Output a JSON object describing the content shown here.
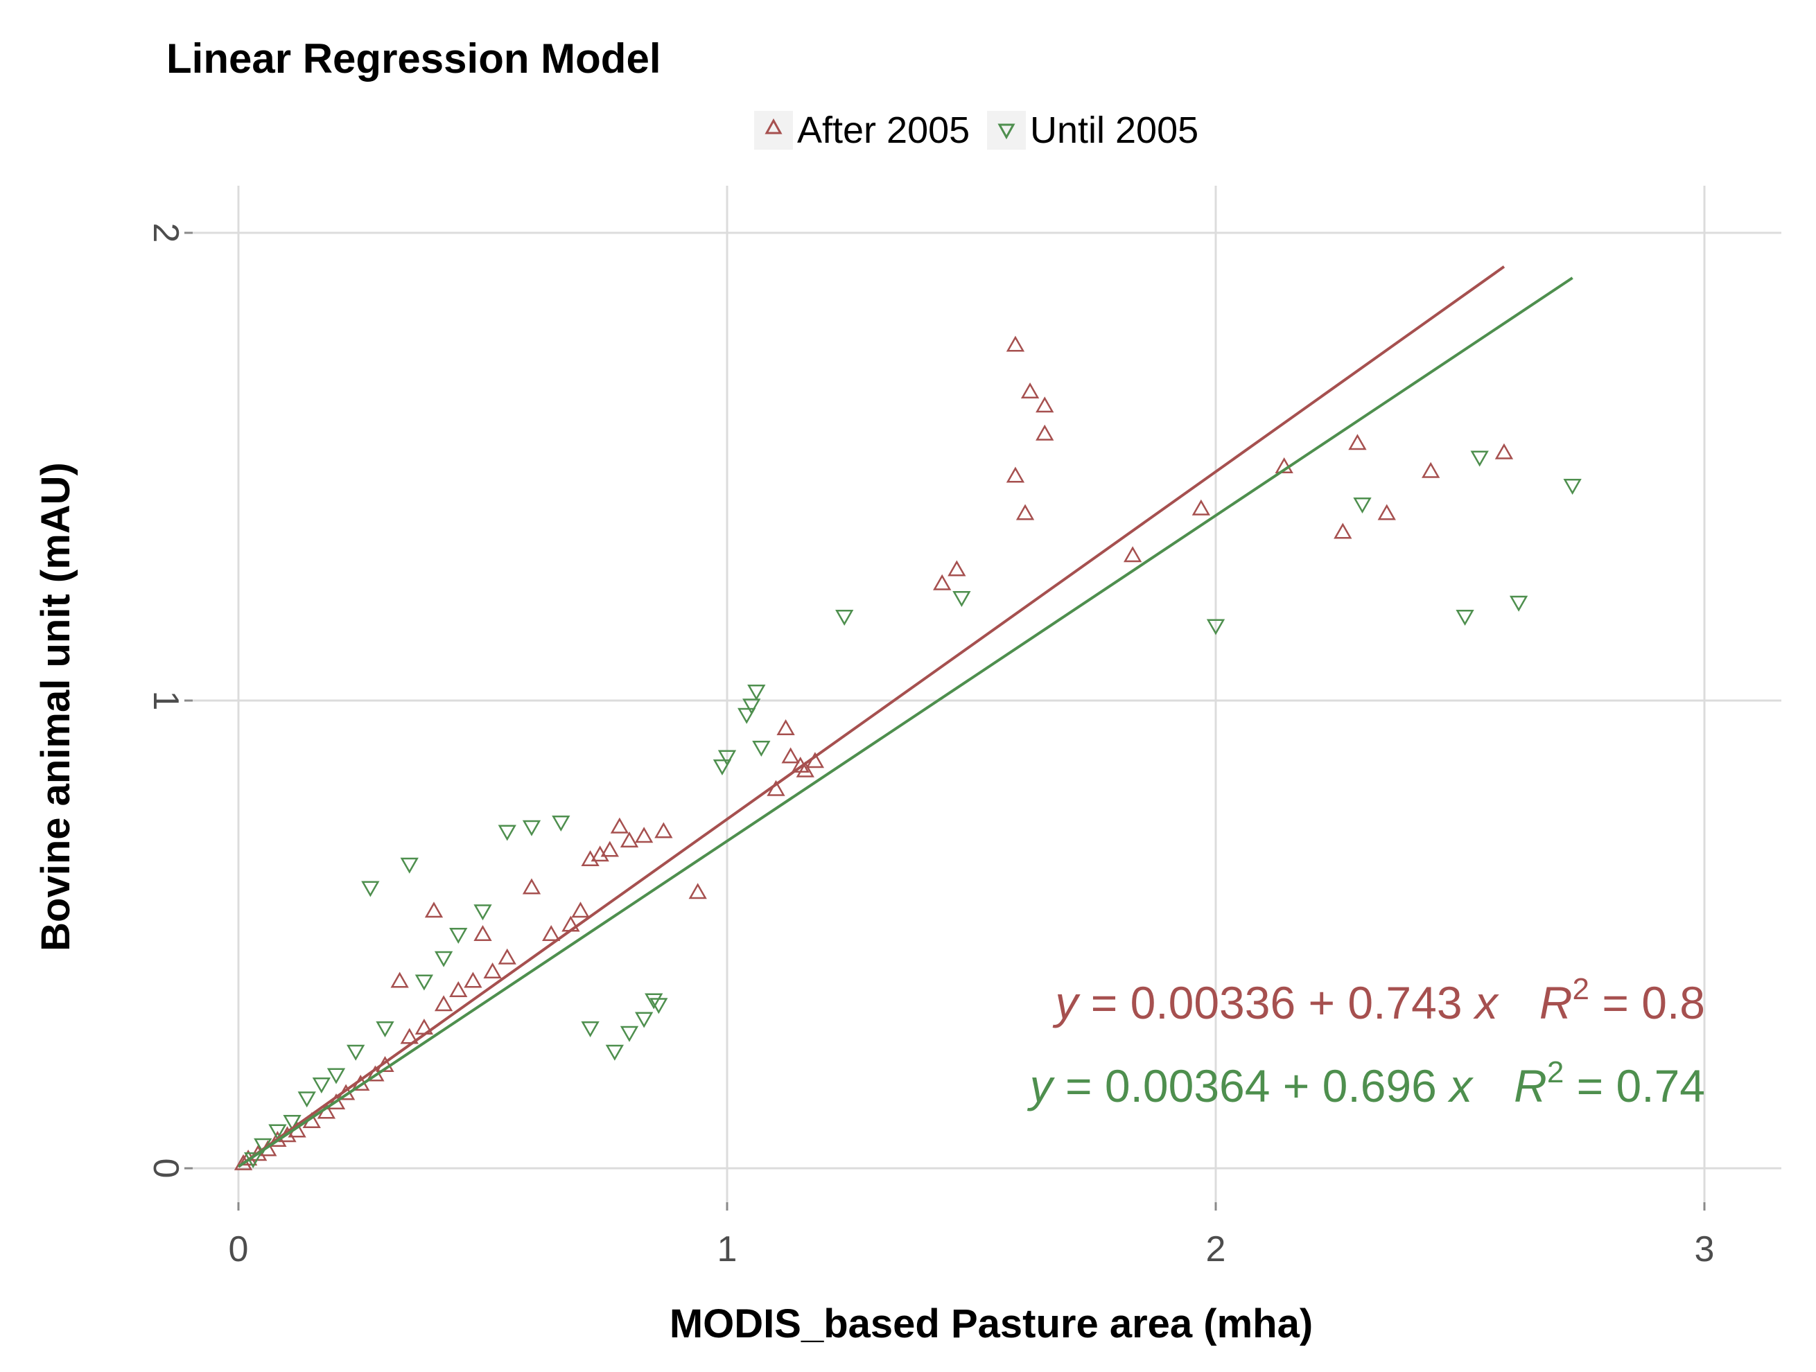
{
  "chart_data": {
    "type": "scatter",
    "title": "Linear Regression Model",
    "xlabel": "MODIS_based Pasture area (mha)",
    "ylabel": "Bovine animal unit (mAU)",
    "xlim": [
      -0.1,
      3.15
    ],
    "ylim": [
      -0.08,
      2.1
    ],
    "xticks": [
      0,
      1,
      2,
      3
    ],
    "yticks": [
      0,
      1,
      2
    ],
    "xtick_labels": [
      "0",
      "1",
      "2",
      "3"
    ],
    "ytick_labels": [
      "0",
      "1",
      "2"
    ],
    "grid": true,
    "legend_position": "top",
    "series": [
      {
        "name": "After 2005",
        "legend_label": "After 2005",
        "marker": "triangle-up",
        "color": "#a6504f",
        "x": [
          1.59,
          1.62,
          1.65,
          1.65,
          1.59,
          1.61,
          1.47,
          1.44,
          1.83,
          1.97,
          2.14,
          2.29,
          2.26,
          2.35,
          2.44,
          2.59,
          1.12,
          1.15,
          1.18,
          1.13,
          1.16,
          1.1,
          0.94,
          0.87,
          0.83,
          0.8,
          0.78,
          0.76,
          0.74,
          0.72,
          0.7,
          0.68,
          0.64,
          0.6,
          0.55,
          0.52,
          0.5,
          0.48,
          0.45,
          0.42,
          0.4,
          0.38,
          0.35,
          0.33,
          0.3,
          0.28,
          0.25,
          0.22,
          0.2,
          0.18,
          0.15,
          0.12,
          0.1,
          0.08,
          0.06,
          0.04,
          0.02,
          0.01
        ],
        "y": [
          1.76,
          1.66,
          1.63,
          1.57,
          1.48,
          1.4,
          1.28,
          1.25,
          1.31,
          1.41,
          1.5,
          1.55,
          1.36,
          1.4,
          1.49,
          1.53,
          0.94,
          0.86,
          0.87,
          0.88,
          0.85,
          0.81,
          0.59,
          0.72,
          0.71,
          0.7,
          0.73,
          0.68,
          0.67,
          0.66,
          0.55,
          0.52,
          0.5,
          0.6,
          0.45,
          0.42,
          0.5,
          0.4,
          0.38,
          0.35,
          0.55,
          0.3,
          0.28,
          0.4,
          0.22,
          0.2,
          0.18,
          0.16,
          0.14,
          0.12,
          0.1,
          0.08,
          0.07,
          0.06,
          0.04,
          0.03,
          0.02,
          0.01
        ]
      },
      {
        "name": "Until 2005",
        "legend_label": "Until 2005",
        "marker": "triangle-down",
        "color": "#4e8f4e",
        "x": [
          2.73,
          2.62,
          2.54,
          2.51,
          2.3,
          2.0,
          1.24,
          1.48,
          1.06,
          1.05,
          1.04,
          1.0,
          0.99,
          1.07,
          0.85,
          0.83,
          0.86,
          0.8,
          0.77,
          0.72,
          0.66,
          0.6,
          0.55,
          0.5,
          0.45,
          0.42,
          0.38,
          0.35,
          0.3,
          0.27,
          0.24,
          0.2,
          0.17,
          0.14,
          0.11,
          0.08,
          0.05,
          0.03
        ],
        "y": [
          1.46,
          1.21,
          1.52,
          1.18,
          1.42,
          1.16,
          1.18,
          1.22,
          1.02,
          0.99,
          0.97,
          0.88,
          0.86,
          0.9,
          0.36,
          0.32,
          0.35,
          0.29,
          0.25,
          0.3,
          0.74,
          0.73,
          0.72,
          0.55,
          0.5,
          0.45,
          0.4,
          0.65,
          0.3,
          0.6,
          0.25,
          0.2,
          0.18,
          0.15,
          0.1,
          0.08,
          0.05,
          0.02
        ]
      }
    ],
    "fits": [
      {
        "series": "After 2005",
        "intercept": 0.00336,
        "slope": 0.743,
        "x_range": [
          0,
          2.59
        ],
        "color": "#a6504f",
        "eq_lhs": "y",
        "eq_rhs": " = 0.00336 + 0.743 ",
        "eq_x": "x",
        "eq_r": "R",
        "eq_sup": "2",
        "eq_rval": " = 0.8"
      },
      {
        "series": "Until 2005",
        "intercept": 0.00364,
        "slope": 0.696,
        "x_range": [
          0,
          2.73
        ],
        "color": "#4e8f4e",
        "eq_lhs": "y",
        "eq_rhs": " = 0.00364 + 0.696 ",
        "eq_x": "x",
        "eq_r": "R",
        "eq_sup": "2",
        "eq_rval": " = 0.74"
      }
    ]
  }
}
